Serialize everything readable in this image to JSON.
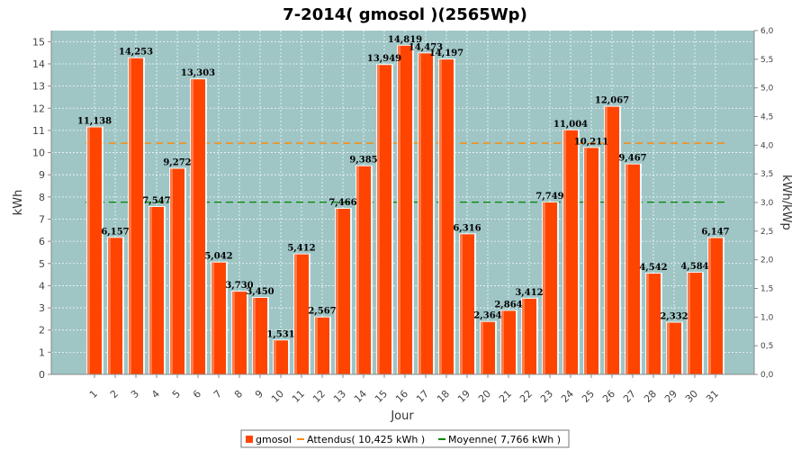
{
  "chart_data": {
    "type": "bar",
    "title": "7-2014( gmosol )(2565Wp)",
    "xlabel": "Jour",
    "ylabel": "kWh",
    "ylabel_right": "kWh/kWp",
    "ylim": [
      0,
      15.5
    ],
    "ylim_right": [
      0,
      6.0
    ],
    "yticks": [
      0,
      1,
      2,
      3,
      4,
      5,
      6,
      7,
      8,
      9,
      10,
      11,
      12,
      13,
      14,
      15
    ],
    "yticks_right": [
      "0,0",
      "0,5",
      "1,0",
      "1,5",
      "2,0",
      "2,5",
      "3,0",
      "3,5",
      "4,0",
      "4,5",
      "5,0",
      "5,5",
      "6,0"
    ],
    "categories": [
      "1",
      "2",
      "3",
      "4",
      "5",
      "6",
      "7",
      "8",
      "9",
      "10",
      "11",
      "12",
      "13",
      "14",
      "15",
      "16",
      "17",
      "18",
      "19",
      "20",
      "21",
      "22",
      "23",
      "24",
      "25",
      "26",
      "27",
      "28",
      "29",
      "30",
      "31"
    ],
    "series": [
      {
        "name": "gmosol",
        "values": [
          11.138,
          6.157,
          14.253,
          7.547,
          9.272,
          13.303,
          5.042,
          3.73,
          3.45,
          1.531,
          5.412,
          2.567,
          7.466,
          9.385,
          13.949,
          14.819,
          14.473,
          14.197,
          6.316,
          2.364,
          2.864,
          3.412,
          7.749,
          11.004,
          10.211,
          12.067,
          9.467,
          4.542,
          2.332,
          4.584,
          6.147
        ],
        "labels": [
          "11,138",
          "6,157",
          "14,253",
          "7,547",
          "9,272",
          "13,303",
          "5,042",
          "3,730",
          "3,450",
          "1,531",
          "5,412",
          "2,567",
          "7,466",
          "9,385",
          "13,949",
          "14,819",
          "14,473",
          "14,197",
          "6,316",
          "2,364",
          "2,864",
          "3,412",
          "7,749",
          "11,004",
          "10,211",
          "12,067",
          "9,467",
          "4,542",
          "2,332",
          "4,584",
          "6,147"
        ],
        "color": "#ff4400"
      }
    ],
    "reference_lines": [
      {
        "name": "Attendus( 10,425 kWh )",
        "value": 10.425,
        "color": "#ff8800",
        "dash": "8,5"
      },
      {
        "name": "Moyenne( 7,766 kWh )",
        "value": 7.766,
        "color": "#008800",
        "dash": "8,5"
      }
    ],
    "grid": true,
    "legend": "bottom-center",
    "plot_background": "#9fc5c5"
  }
}
